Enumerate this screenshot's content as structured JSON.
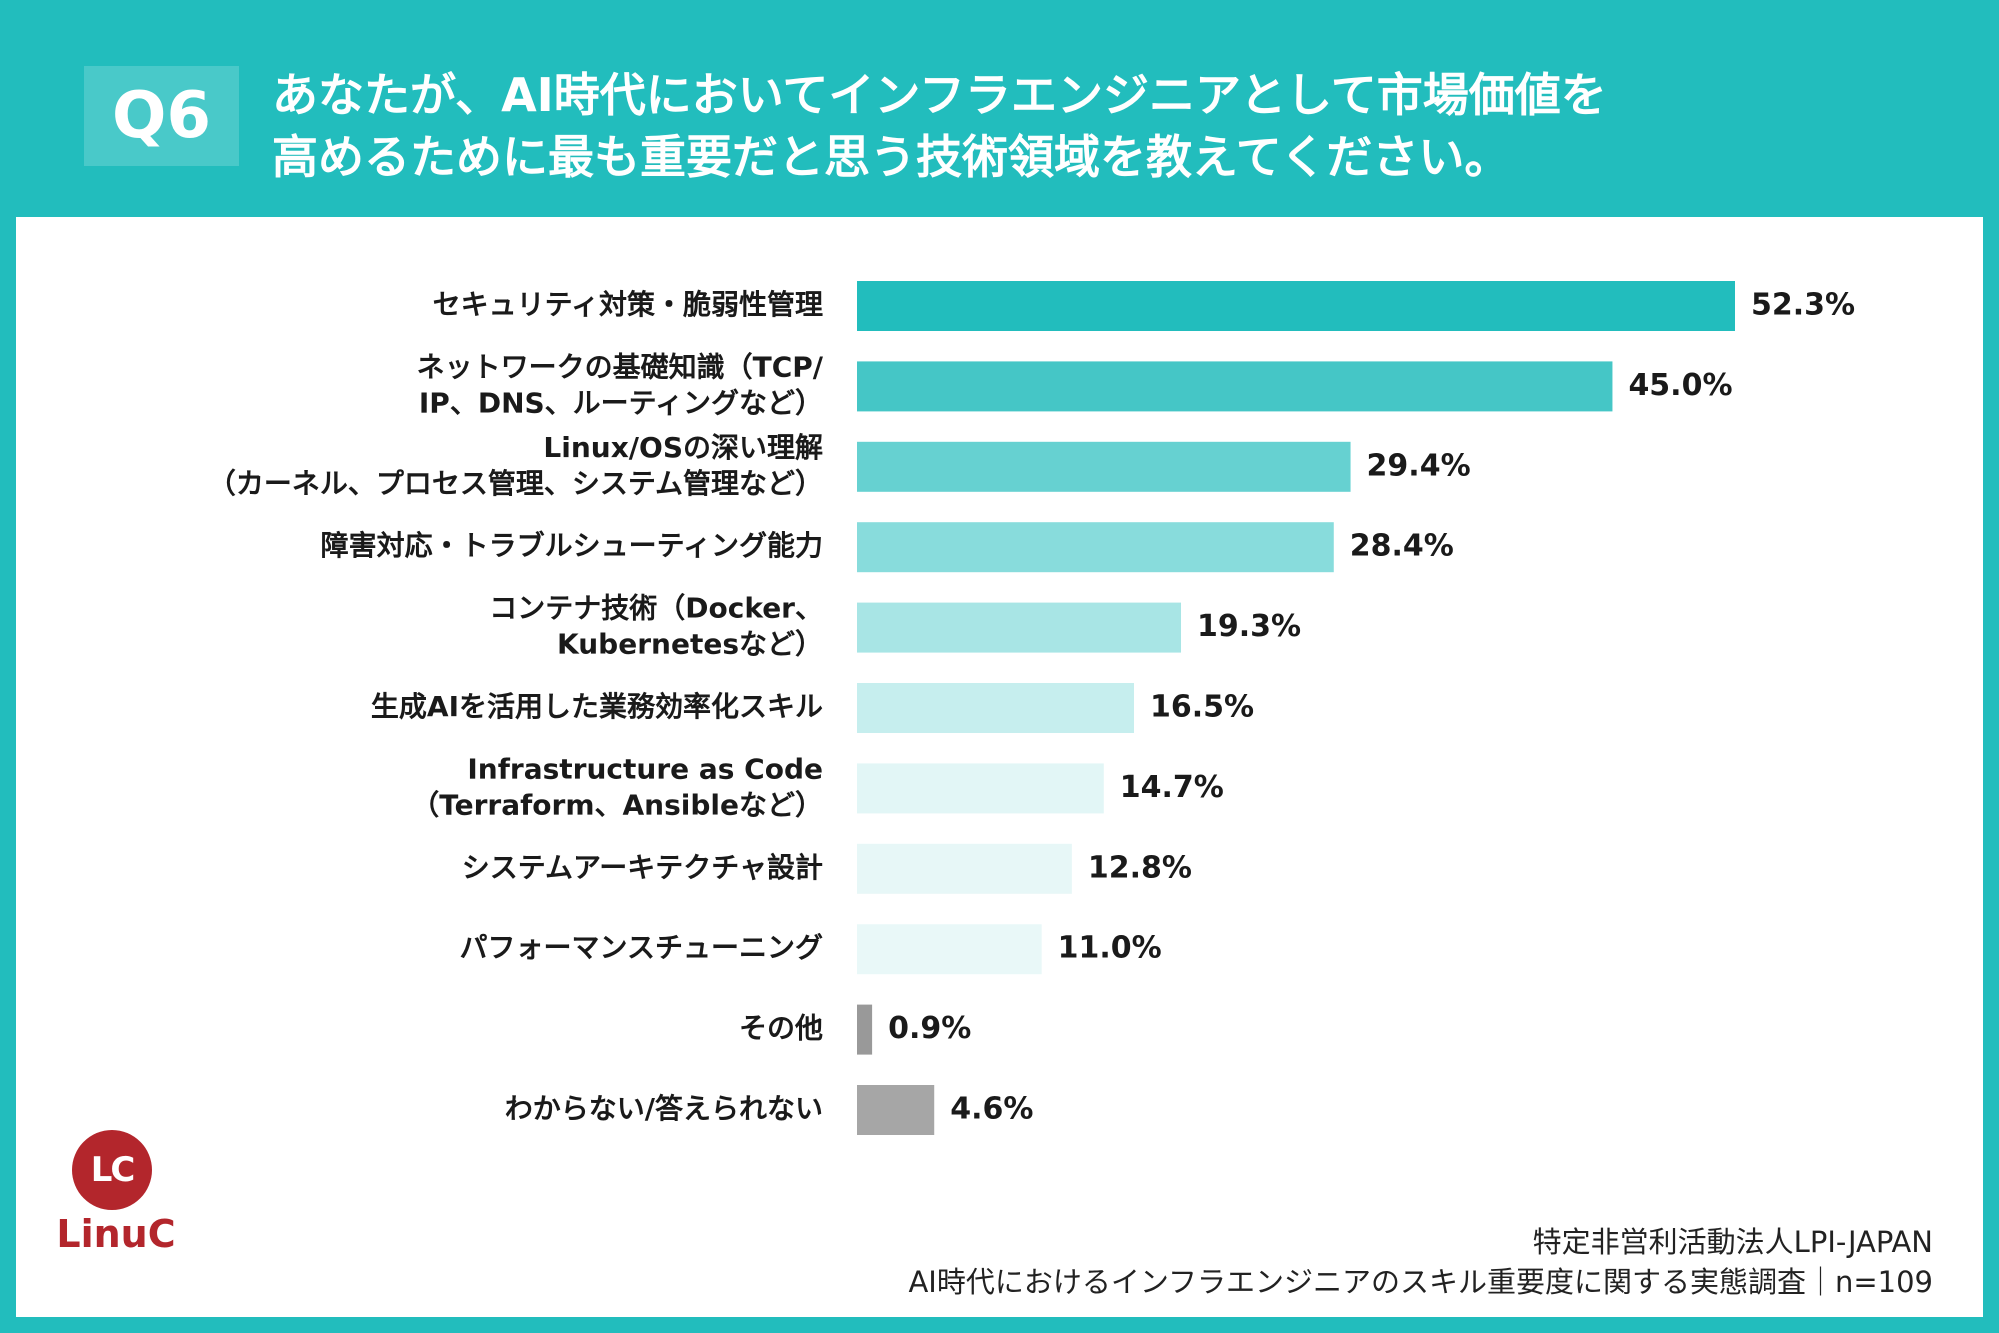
{
  "header": {
    "badge": "Q6",
    "question_line1": "あなたが、AI時代においてインフラエンジニアとして市場価値を",
    "question_line2": "高めるために最も重要だと思う技術領域を教えてください。"
  },
  "chart_data": {
    "type": "bar",
    "orientation": "horizontal",
    "title": "",
    "xlabel": "",
    "ylabel": "",
    "xlim": [
      0,
      60
    ],
    "grid": false,
    "legend": "none",
    "categories": [
      [
        "セキュリティ対策・脆弱性管理"
      ],
      [
        "ネットワークの基礎知識（TCP/",
        "IP、DNS、ルーティングなど）"
      ],
      [
        "Linux/OSの深い理解",
        "（カーネル、プロセス管理、システム管理など）"
      ],
      [
        "障害対応・トラブルシューティング能力"
      ],
      [
        "コンテナ技術（Docker、",
        "Kubernetesなど）"
      ],
      [
        "生成AIを活用した業務効率化スキル"
      ],
      [
        "Infrastructure as Code",
        "（Terraform、Ansibleなど）"
      ],
      [
        "システムアーキテクチャ設計"
      ],
      [
        "パフォーマンスチューニング"
      ],
      [
        "その他"
      ],
      [
        "わからない/答えられない"
      ]
    ],
    "values": [
      52.3,
      45.0,
      29.4,
      28.4,
      19.3,
      16.5,
      14.7,
      12.8,
      11.0,
      0.9,
      4.6
    ],
    "value_labels": [
      "52.3%",
      "45.0%",
      "29.4%",
      "28.4%",
      "19.3%",
      "16.5%",
      "14.7%",
      "12.8%",
      "11.0%",
      "0.9%",
      "4.6%"
    ],
    "colors": [
      "#22bdbd",
      "#45c6c6",
      "#66d1d1",
      "#88dcdc",
      "#a8e5e5",
      "#c6eeee",
      "#e2f6f6",
      "#e7f7f7",
      "#e9f8f8",
      "#999999",
      "#a6a6a6"
    ]
  },
  "logo": {
    "mark": "LC",
    "name": "LinuC",
    "color": "#b3262c"
  },
  "source": {
    "line1": "特定非営利活動法人LPI-JAPAN",
    "line2": "AI時代におけるインフラエンジニアのスキル重要度に関する実態調査｜n=109"
  }
}
